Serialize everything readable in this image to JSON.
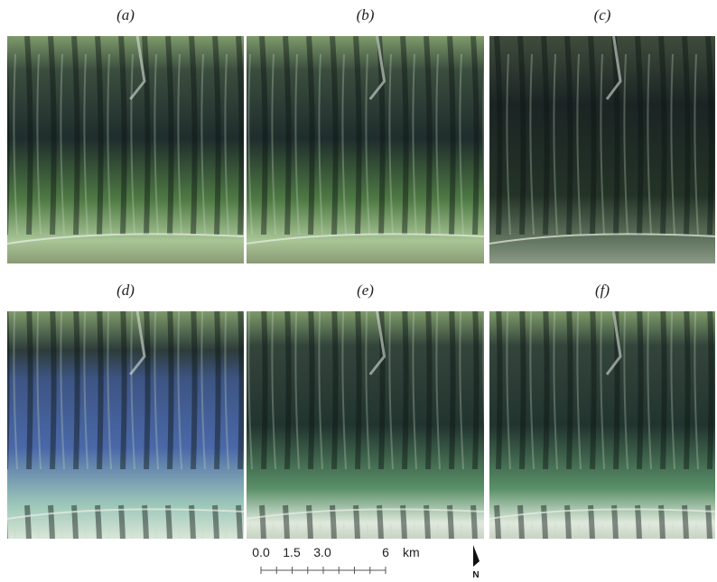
{
  "panels": [
    {
      "label": "(a)"
    },
    {
      "label": "(b)"
    },
    {
      "label": "(c)"
    },
    {
      "label": "(d)"
    },
    {
      "label": "(e)"
    },
    {
      "label": "(f)"
    }
  ],
  "scale_bar": {
    "ticks": [
      "0.0",
      "1.5",
      "3.0",
      "6"
    ],
    "unit": "km"
  },
  "north": "N"
}
